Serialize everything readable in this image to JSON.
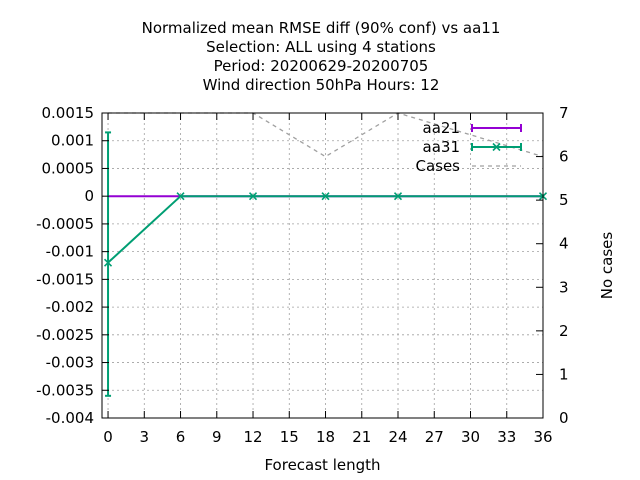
{
  "chart_data": {
    "type": "line",
    "title_lines": [
      "Normalized mean RMSE diff (90% conf) vs aa11",
      "Selection: ALL using     4 stations",
      "Period: 20200629-20200705",
      "Wind direction 50hPa   Hours:  12"
    ],
    "xlabel": "Forecast length",
    "ylabel": "",
    "y2label": "No cases",
    "xlim": [
      -0.5,
      36
    ],
    "ylim": [
      -0.004,
      0.0015
    ],
    "y2lim": [
      0,
      7
    ],
    "x_ticks": [
      "0",
      "3",
      "6",
      "9",
      "12",
      "15",
      "18",
      "21",
      "24",
      "27",
      "30",
      "33",
      "36"
    ],
    "y_ticks": [
      "0.0015",
      "0.001",
      "0.0005",
      "0",
      "-0.0005",
      "-0.001",
      "-0.0015",
      "-0.002",
      "-0.0025",
      "-0.003",
      "-0.0035",
      "-0.004"
    ],
    "y2_ticks": [
      "7",
      "6",
      "5",
      "4",
      "3",
      "2",
      "1",
      "0"
    ],
    "grid": true,
    "legend_position": "top-right",
    "series": [
      {
        "name": "aa21",
        "color": "#9400d3",
        "x": [
          0,
          6,
          12,
          18,
          24,
          36
        ],
        "y": [
          0,
          0,
          0,
          0,
          0,
          0
        ],
        "error_low": [
          0,
          0,
          0,
          0,
          0,
          0
        ],
        "error_high": [
          0,
          0,
          0,
          0,
          0,
          0
        ]
      },
      {
        "name": "aa31",
        "color": "#009e73",
        "x": [
          0,
          6,
          12,
          18,
          24,
          36
        ],
        "y": [
          -0.0012,
          0,
          0,
          0,
          0,
          0
        ],
        "error_low": [
          -0.0036,
          0,
          0,
          0,
          0,
          0
        ],
        "error_high": [
          0.00115,
          0,
          0,
          0,
          0,
          0
        ]
      },
      {
        "name": "Cases",
        "axis": "y2",
        "color": "#a0a0a0",
        "x": [
          0,
          6,
          12,
          18,
          24,
          36
        ],
        "y": [
          7,
          7,
          7,
          6,
          7,
          6
        ]
      }
    ]
  }
}
